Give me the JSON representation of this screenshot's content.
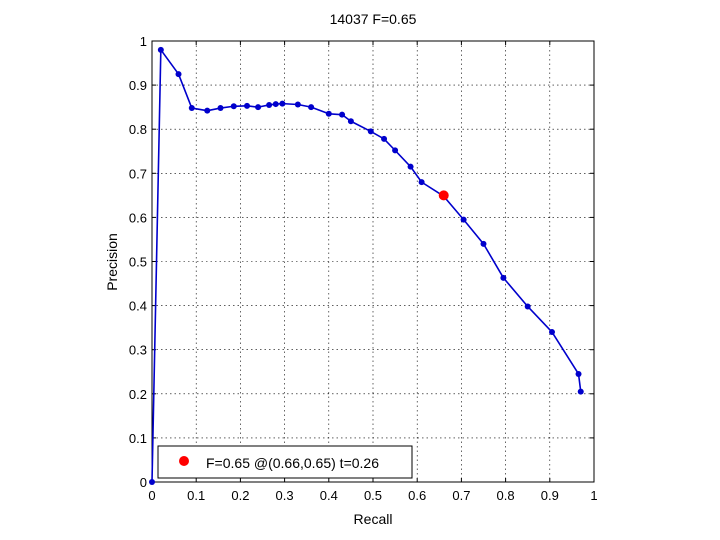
{
  "chart_data": {
    "type": "line",
    "title": "14037 F=0.65",
    "xlabel": "Recall",
    "ylabel": "Precision",
    "xlim": [
      0,
      1
    ],
    "ylim": [
      0,
      1
    ],
    "xticks": [
      0,
      0.1,
      0.2,
      0.3,
      0.4,
      0.5,
      0.6,
      0.7,
      0.8,
      0.9,
      1
    ],
    "yticks": [
      0,
      0.1,
      0.2,
      0.3,
      0.4,
      0.5,
      0.6,
      0.7,
      0.8,
      0.9,
      1
    ],
    "xtick_labels": [
      "0",
      "0.1",
      "0.2",
      "0.3",
      "0.4",
      "0.5",
      "0.6",
      "0.7",
      "0.8",
      "0.9",
      "1"
    ],
    "ytick_labels": [
      "0",
      "0.1",
      "0.2",
      "0.3",
      "0.4",
      "0.5",
      "0.6",
      "0.7",
      "0.8",
      "0.9",
      "1"
    ],
    "grid": true,
    "legend_position": "bottom-left",
    "line_color": "#0000cc",
    "series": [
      {
        "x": [
          0.0,
          0.02,
          0.06,
          0.09,
          0.125,
          0.155,
          0.185,
          0.215,
          0.24,
          0.265,
          0.28,
          0.295,
          0.33,
          0.36,
          0.4,
          0.43,
          0.45,
          0.495,
          0.525,
          0.55,
          0.585,
          0.61,
          0.66,
          0.705,
          0.75,
          0.795,
          0.85,
          0.905,
          0.965,
          0.97
        ],
        "y": [
          0.0,
          0.98,
          0.925,
          0.848,
          0.842,
          0.848,
          0.852,
          0.853,
          0.85,
          0.855,
          0.857,
          0.858,
          0.856,
          0.85,
          0.835,
          0.833,
          0.818,
          0.795,
          0.778,
          0.752,
          0.715,
          0.68,
          0.648,
          0.595,
          0.54,
          0.463,
          0.398,
          0.34,
          0.245,
          0.205
        ]
      }
    ],
    "highlight": {
      "x": 0.66,
      "y": 0.65,
      "color": "#ff0000"
    },
    "legend": {
      "label": "F=0.65 @(0.66,0.65) t=0.26",
      "marker_color": "#ff0000"
    }
  }
}
